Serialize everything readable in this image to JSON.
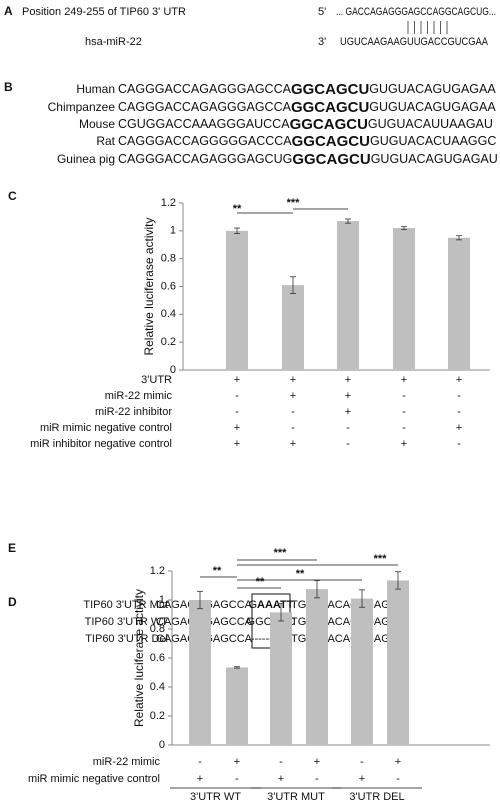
{
  "panel_a": {
    "label": "A",
    "title": "Position 249-255 of TIP60 3' UTR",
    "prime5": "5'",
    "seq1": "... GACCAGAGGGAGCCAGGCAGCUG...",
    "mirna": "hsa-miR-22",
    "prime3": "3'",
    "seq2": "UGUCAAGAAGUUGACCGUCGAA"
  },
  "panel_b": {
    "label": "B",
    "rows": [
      {
        "species": "Human",
        "prefix": "CAGGGACCAGAGGGAGCCA",
        "seed": "GGCAGCU",
        "suffix": "GUGUACAGUGAGAA"
      },
      {
        "species": "Chimpanzee",
        "prefix": "CAGGGACCAGAGGGAGCCA",
        "seed": "GGCAGCU",
        "suffix": "GUGUACAGUGAGAA"
      },
      {
        "species": "Mouse",
        "prefix": "CGUGGACCAAAGGGAUCCA",
        "seed": "GGCAGCU",
        "suffix": "GUGUACAUUAAGAU"
      },
      {
        "species": "Rat",
        "prefix": "CAGGGACCAGGGGGACCCA",
        "seed": "GGCAGCU",
        "suffix": "GUGUACACUAAGGC"
      },
      {
        "species": "Guinea pig",
        "prefix": "CAGGGACCAGAGGGAGCUG",
        "seed": "GGCAGCU",
        "suffix": "GUGUACAGUGAGAU"
      }
    ]
  },
  "panel_c": {
    "label": "C",
    "chart": {
      "type": "bar",
      "ylabel": "Relative luciferase activity",
      "color": "#bfbfbf",
      "values": [
        1.0,
        0.61,
        1.07,
        1.02,
        0.95
      ],
      "errors": [
        0.02,
        0.06,
        0.015,
        0.01,
        0.015
      ],
      "ylim": [
        0,
        1.2
      ],
      "yticks": [
        0,
        0.2,
        0.4,
        0.6,
        0.8,
        1,
        1.2
      ],
      "significance": [
        "**",
        "***"
      ],
      "conditions": [
        {
          "name": "3'UTR",
          "signs": [
            "+",
            "+",
            "+",
            "+",
            "+"
          ]
        },
        {
          "name": "miR-22 mimic",
          "signs": [
            "-",
            "+",
            "+",
            "-",
            "-"
          ]
        },
        {
          "name": "miR-22 inhibitor",
          "signs": [
            "-",
            "-",
            "+",
            "-",
            "-"
          ]
        },
        {
          "name": "miR mimic negative control",
          "signs": [
            "+",
            "-",
            "-",
            "-",
            "+"
          ]
        },
        {
          "name": "miR inhibitor negative control",
          "signs": [
            "+",
            "+",
            "-",
            "+",
            "-"
          ]
        }
      ]
    }
  },
  "panel_d": {
    "label": "D",
    "rows": [
      {
        "name": "TIP60 3'UTR Mut",
        "left": "CAGAGGGAGCCA",
        "box": "G",
        "box_bold": "AAATT",
        "right": "TGTGTACAGTGAG"
      },
      {
        "name": "TIP60 3'UTR WT",
        "left": "CAGAGGGAGCCA",
        "box": "GGCAGC",
        "box_bold": "",
        "right": "TGTGTACAGTGAG"
      },
      {
        "name": "TIP60 3'UTR Del",
        "left": "CAGAGGGAGCCA",
        "box": "-----------",
        "box_bold": "",
        "right": "TGTGTACAGTGAG"
      }
    ]
  },
  "panel_e": {
    "label": "E",
    "chart": {
      "type": "bar",
      "ylabel": "Relative luciferase activity",
      "color": "#bfbfbf",
      "values": [
        1.0,
        0.535,
        0.915,
        1.075,
        1.01,
        1.135
      ],
      "errors": [
        0.06,
        0.005,
        0.06,
        0.06,
        0.06,
        0.06
      ],
      "ylim": [
        0,
        1.2
      ],
      "yticks": [
        0,
        0.2,
        0.4,
        0.6,
        0.8,
        1,
        1.2
      ],
      "significance": [
        "**",
        "***",
        "**",
        "**",
        "***"
      ],
      "conditions": [
        {
          "name": "miR-22 mimic",
          "signs": [
            "-",
            "+",
            "-",
            "+",
            "-",
            "+"
          ]
        },
        {
          "name": "miR mimic negative control",
          "signs": [
            "+",
            "-",
            "+",
            "-",
            "+",
            "-"
          ]
        }
      ],
      "groups": [
        "3'UTR WT",
        "3'UTR MUT",
        "3'UTR DEL"
      ]
    }
  }
}
